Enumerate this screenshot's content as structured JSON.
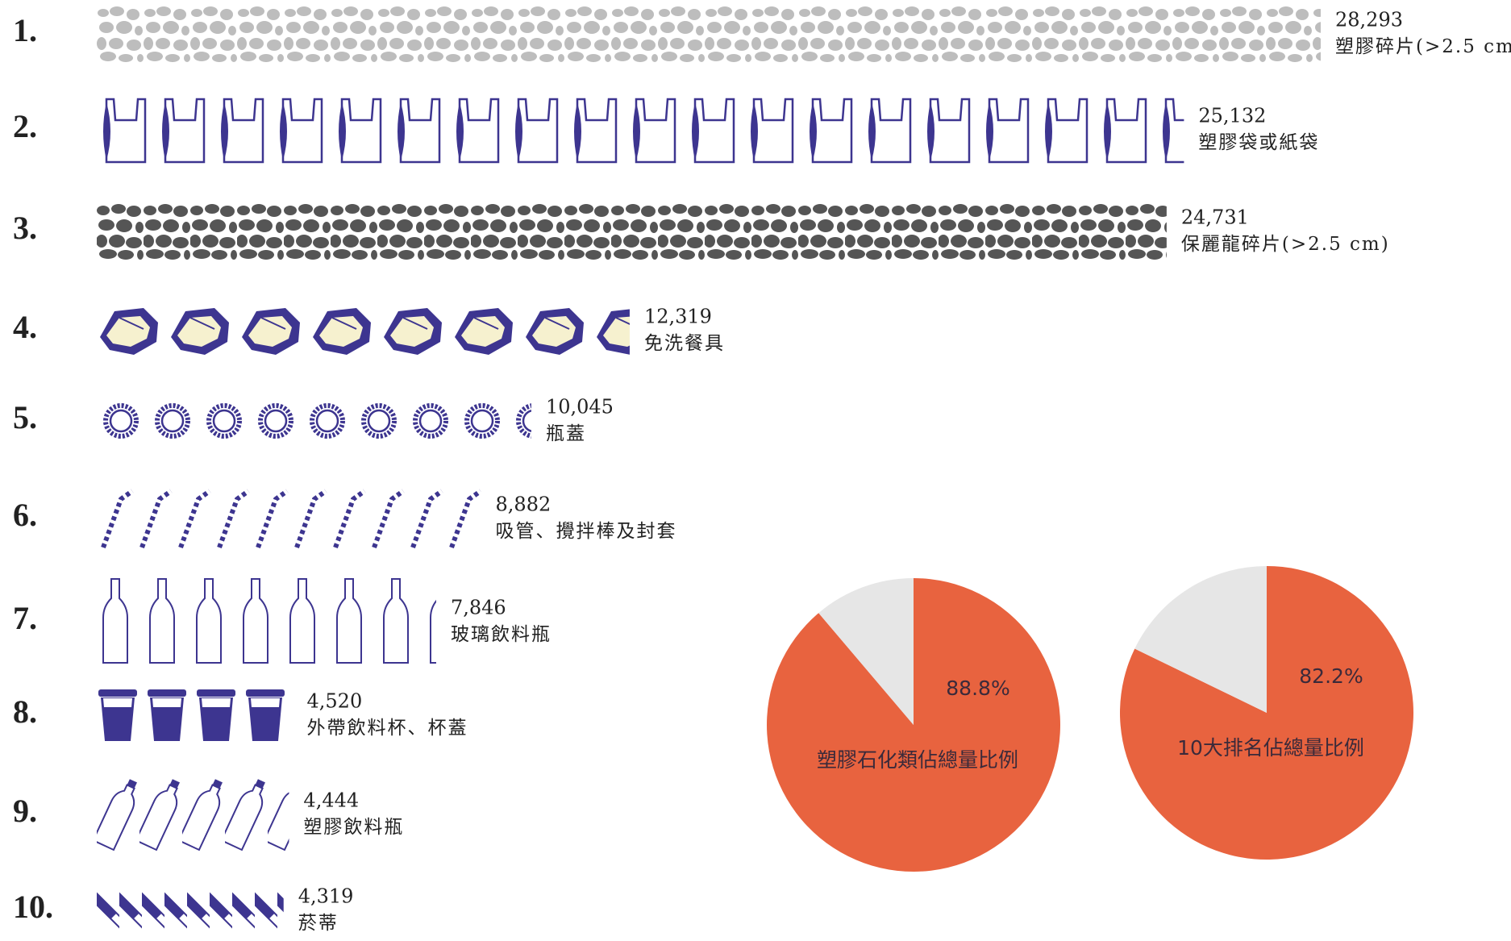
{
  "chart_data": [
    {
      "type": "pictograph",
      "ranks": [
        "1.",
        "2.",
        "3.",
        "4.",
        "5.",
        "6.",
        "7.",
        "8.",
        "9.",
        "10."
      ],
      "categories": [
        "塑膠碎片(>2.5 cm)",
        "塑膠袋或紙袋",
        "保麗龍碎片(>2.5 cm)",
        "免洗餐具",
        "瓶蓋",
        "吸管、攪拌棒及封套",
        "玻璃飲料瓶",
        "外帶飲料杯、杯蓋",
        "塑膠飲料瓶",
        "菸蒂"
      ],
      "values": [
        28293,
        25132,
        24731,
        12319,
        10045,
        8882,
        7846,
        4520,
        4444,
        4319
      ],
      "value_labels": [
        "28,293",
        "25,132",
        "24,731",
        "12,319",
        "10,045",
        "8,882",
        "7,846",
        "4,520",
        "4,444",
        "4,319"
      ]
    },
    {
      "type": "pie",
      "title": "塑膠石化類佔總量比例",
      "values": [
        88.8,
        11.2
      ],
      "value_labels": [
        "88.8%",
        null
      ],
      "colors": [
        "#e8633f",
        "#e6e6e6"
      ]
    },
    {
      "type": "pie",
      "title": "10大排名佔總量比例",
      "values": [
        82.2,
        17.8
      ],
      "value_labels": [
        "82.2%",
        null
      ],
      "colors": [
        "#e8633f",
        "#e6e6e6"
      ]
    }
  ]
}
